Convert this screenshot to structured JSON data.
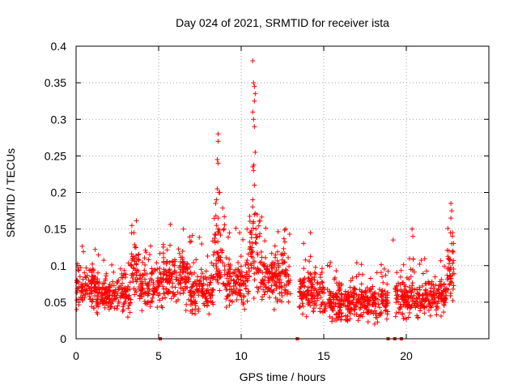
{
  "chart_data": {
    "type": "scatter",
    "title": "Day 024 of 2021, SRMTID for receiver ista",
    "xlabel": "GPS time / hours",
    "ylabel": "SRMTID / TECUs",
    "xlim": [
      0,
      25
    ],
    "ylim": [
      0,
      0.4
    ],
    "xticks": [
      0,
      5,
      10,
      15,
      20
    ],
    "yticks": [
      0,
      0.05,
      0.1,
      0.15,
      0.2,
      0.25,
      0.3,
      0.35,
      0.4
    ],
    "xtick_labels": [
      "0",
      "5",
      "10",
      "15",
      "20"
    ],
    "ytick_labels": [
      "0",
      "0.05",
      "0.1",
      "0.15",
      "0.2",
      "0.25",
      "0.3",
      "0.35",
      "0.4"
    ],
    "grid": true,
    "marker": "+",
    "color": "#ff0000",
    "series": [
      {
        "name": "SRMTID",
        "segments": [
          {
            "t_start": 0.0,
            "t_end": 1.2,
            "base": 0.07,
            "spread": 0.03
          },
          {
            "t_start": 1.2,
            "t_end": 3.3,
            "base": 0.06,
            "spread": 0.025
          },
          {
            "t_start": 3.3,
            "t_end": 3.8,
            "base": 0.09,
            "spread": 0.035
          },
          {
            "t_start": 3.8,
            "t_end": 5.0,
            "base": 0.07,
            "spread": 0.03
          },
          {
            "t_start": 5.0,
            "t_end": 6.8,
            "base": 0.085,
            "spread": 0.04
          },
          {
            "t_start": 6.8,
            "t_end": 8.3,
            "base": 0.065,
            "spread": 0.035
          },
          {
            "t_start": 8.3,
            "t_end": 9.0,
            "base": 0.11,
            "spread": 0.05
          },
          {
            "t_start": 9.0,
            "t_end": 10.5,
            "base": 0.075,
            "spread": 0.035
          },
          {
            "t_start": 10.5,
            "t_end": 11.0,
            "base": 0.12,
            "spread": 0.06
          },
          {
            "t_start": 11.0,
            "t_end": 13.0,
            "base": 0.085,
            "spread": 0.04
          },
          {
            "t_start": 13.5,
            "t_end": 15.0,
            "base": 0.065,
            "spread": 0.035
          },
          {
            "t_start": 15.0,
            "t_end": 18.9,
            "base": 0.05,
            "spread": 0.025
          },
          {
            "t_start": 19.3,
            "t_end": 22.4,
            "base": 0.055,
            "spread": 0.025
          },
          {
            "t_start": 22.4,
            "t_end": 22.9,
            "base": 0.09,
            "spread": 0.04
          }
        ],
        "peaks": [
          {
            "x": 8.6,
            "y": 0.28
          },
          {
            "x": 8.6,
            "y": 0.27
          },
          {
            "x": 8.55,
            "y": 0.245
          },
          {
            "x": 8.6,
            "y": 0.24
          },
          {
            "x": 8.55,
            "y": 0.205
          },
          {
            "x": 8.65,
            "y": 0.2
          },
          {
            "x": 8.7,
            "y": 0.2
          },
          {
            "x": 8.5,
            "y": 0.19
          },
          {
            "x": 8.45,
            "y": 0.185
          },
          {
            "x": 8.6,
            "y": 0.165
          },
          {
            "x": 8.5,
            "y": 0.155
          },
          {
            "x": 8.6,
            "y": 0.15
          },
          {
            "x": 10.7,
            "y": 0.38
          },
          {
            "x": 10.75,
            "y": 0.35
          },
          {
            "x": 10.8,
            "y": 0.345
          },
          {
            "x": 10.85,
            "y": 0.335
          },
          {
            "x": 10.8,
            "y": 0.325
          },
          {
            "x": 10.7,
            "y": 0.31
          },
          {
            "x": 10.75,
            "y": 0.3
          },
          {
            "x": 10.8,
            "y": 0.29
          },
          {
            "x": 10.85,
            "y": 0.255
          },
          {
            "x": 10.7,
            "y": 0.235
          },
          {
            "x": 10.75,
            "y": 0.23
          },
          {
            "x": 10.8,
            "y": 0.21
          },
          {
            "x": 10.7,
            "y": 0.19
          },
          {
            "x": 10.8,
            "y": 0.17
          },
          {
            "x": 10.75,
            "y": 0.16
          },
          {
            "x": 22.7,
            "y": 0.185
          },
          {
            "x": 22.75,
            "y": 0.175
          },
          {
            "x": 22.7,
            "y": 0.165
          },
          {
            "x": 22.8,
            "y": 0.145
          },
          {
            "x": 22.75,
            "y": 0.13
          },
          {
            "x": 22.8,
            "y": 0.12
          },
          {
            "x": 20.35,
            "y": 0.15
          },
          {
            "x": 20.4,
            "y": 0.14
          },
          {
            "x": 19.2,
            "y": 0.135
          },
          {
            "x": 3.5,
            "y": 0.145
          },
          {
            "x": 6.5,
            "y": 0.15
          },
          {
            "x": 12.7,
            "y": 0.15
          },
          {
            "x": 14.2,
            "y": 0.145
          }
        ],
        "zero_points": [
          {
            "x": 5.1,
            "y": 0
          },
          {
            "x": 13.4,
            "y": 0
          },
          {
            "x": 18.9,
            "y": 0
          },
          {
            "x": 19.3,
            "y": 0
          },
          {
            "x": 19.7,
            "y": 0
          }
        ]
      }
    ]
  }
}
